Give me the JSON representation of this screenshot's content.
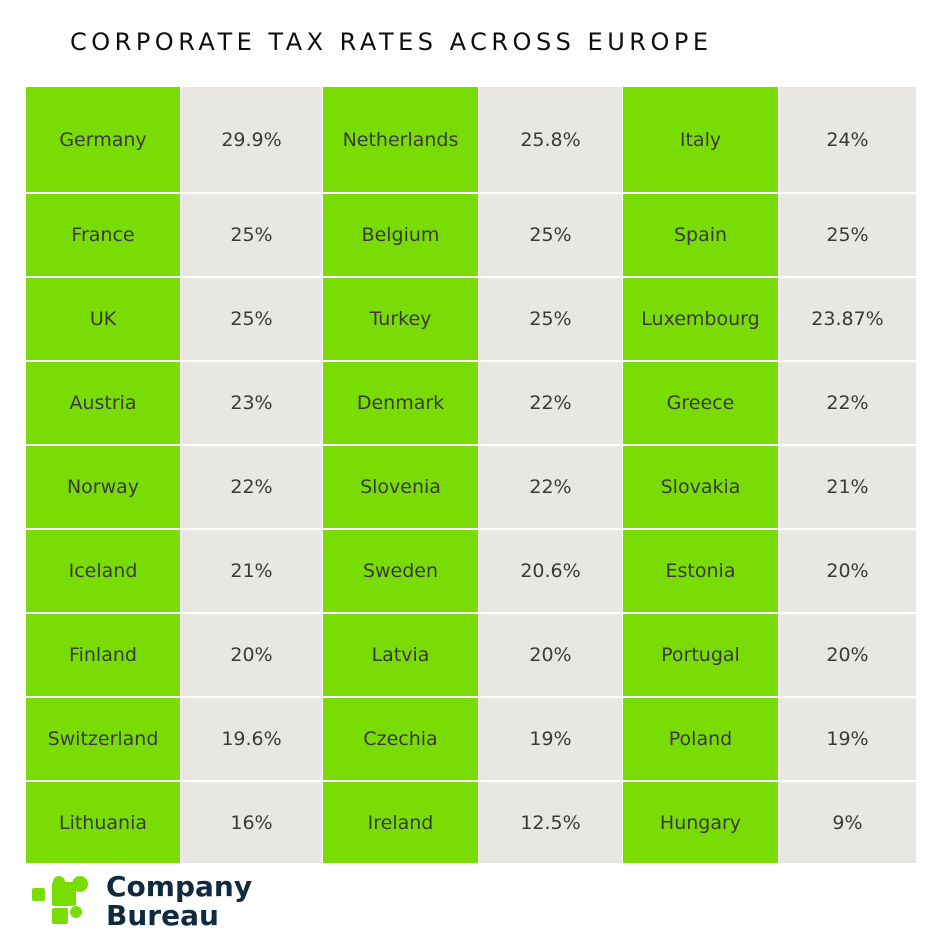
{
  "title": "CORPORATE TAX RATES ACROSS EUROPE",
  "brand": {
    "line1": "Company",
    "line2": "Bureau"
  },
  "colors": {
    "country_bg": "#79dd05",
    "rate_bg": "#e9e7e4",
    "brand_text": "#102b3f"
  },
  "rows": [
    [
      {
        "country": "Germany",
        "rate": "29.9%"
      },
      {
        "country": "Netherlands",
        "rate": "25.8%"
      },
      {
        "country": "Italy",
        "rate": "24%"
      }
    ],
    [
      {
        "country": "France",
        "rate": "25%"
      },
      {
        "country": "Belgium",
        "rate": "25%"
      },
      {
        "country": "Spain",
        "rate": "25%"
      }
    ],
    [
      {
        "country": "UK",
        "rate": "25%"
      },
      {
        "country": "Turkey",
        "rate": "25%"
      },
      {
        "country": "Luxembourg",
        "rate": "23.87%"
      }
    ],
    [
      {
        "country": "Austria",
        "rate": "23%"
      },
      {
        "country": "Denmark",
        "rate": "22%"
      },
      {
        "country": "Greece",
        "rate": "22%"
      }
    ],
    [
      {
        "country": "Norway",
        "rate": "22%"
      },
      {
        "country": "Slovenia",
        "rate": "22%"
      },
      {
        "country": "Slovakia",
        "rate": "21%"
      }
    ],
    [
      {
        "country": "Iceland",
        "rate": "21%"
      },
      {
        "country": "Sweden",
        "rate": "20.6%"
      },
      {
        "country": "Estonia",
        "rate": "20%"
      }
    ],
    [
      {
        "country": "Finland",
        "rate": "20%"
      },
      {
        "country": "Latvia",
        "rate": "20%"
      },
      {
        "country": "Portugal",
        "rate": "20%"
      }
    ],
    [
      {
        "country": "Switzerland",
        "rate": "19.6%"
      },
      {
        "country": "Czechia",
        "rate": "19%"
      },
      {
        "country": "Poland",
        "rate": "19%"
      }
    ],
    [
      {
        "country": "Lithuania",
        "rate": "16%"
      },
      {
        "country": "Ireland",
        "rate": "12.5%"
      },
      {
        "country": "Hungary",
        "rate": "9%"
      }
    ]
  ]
}
